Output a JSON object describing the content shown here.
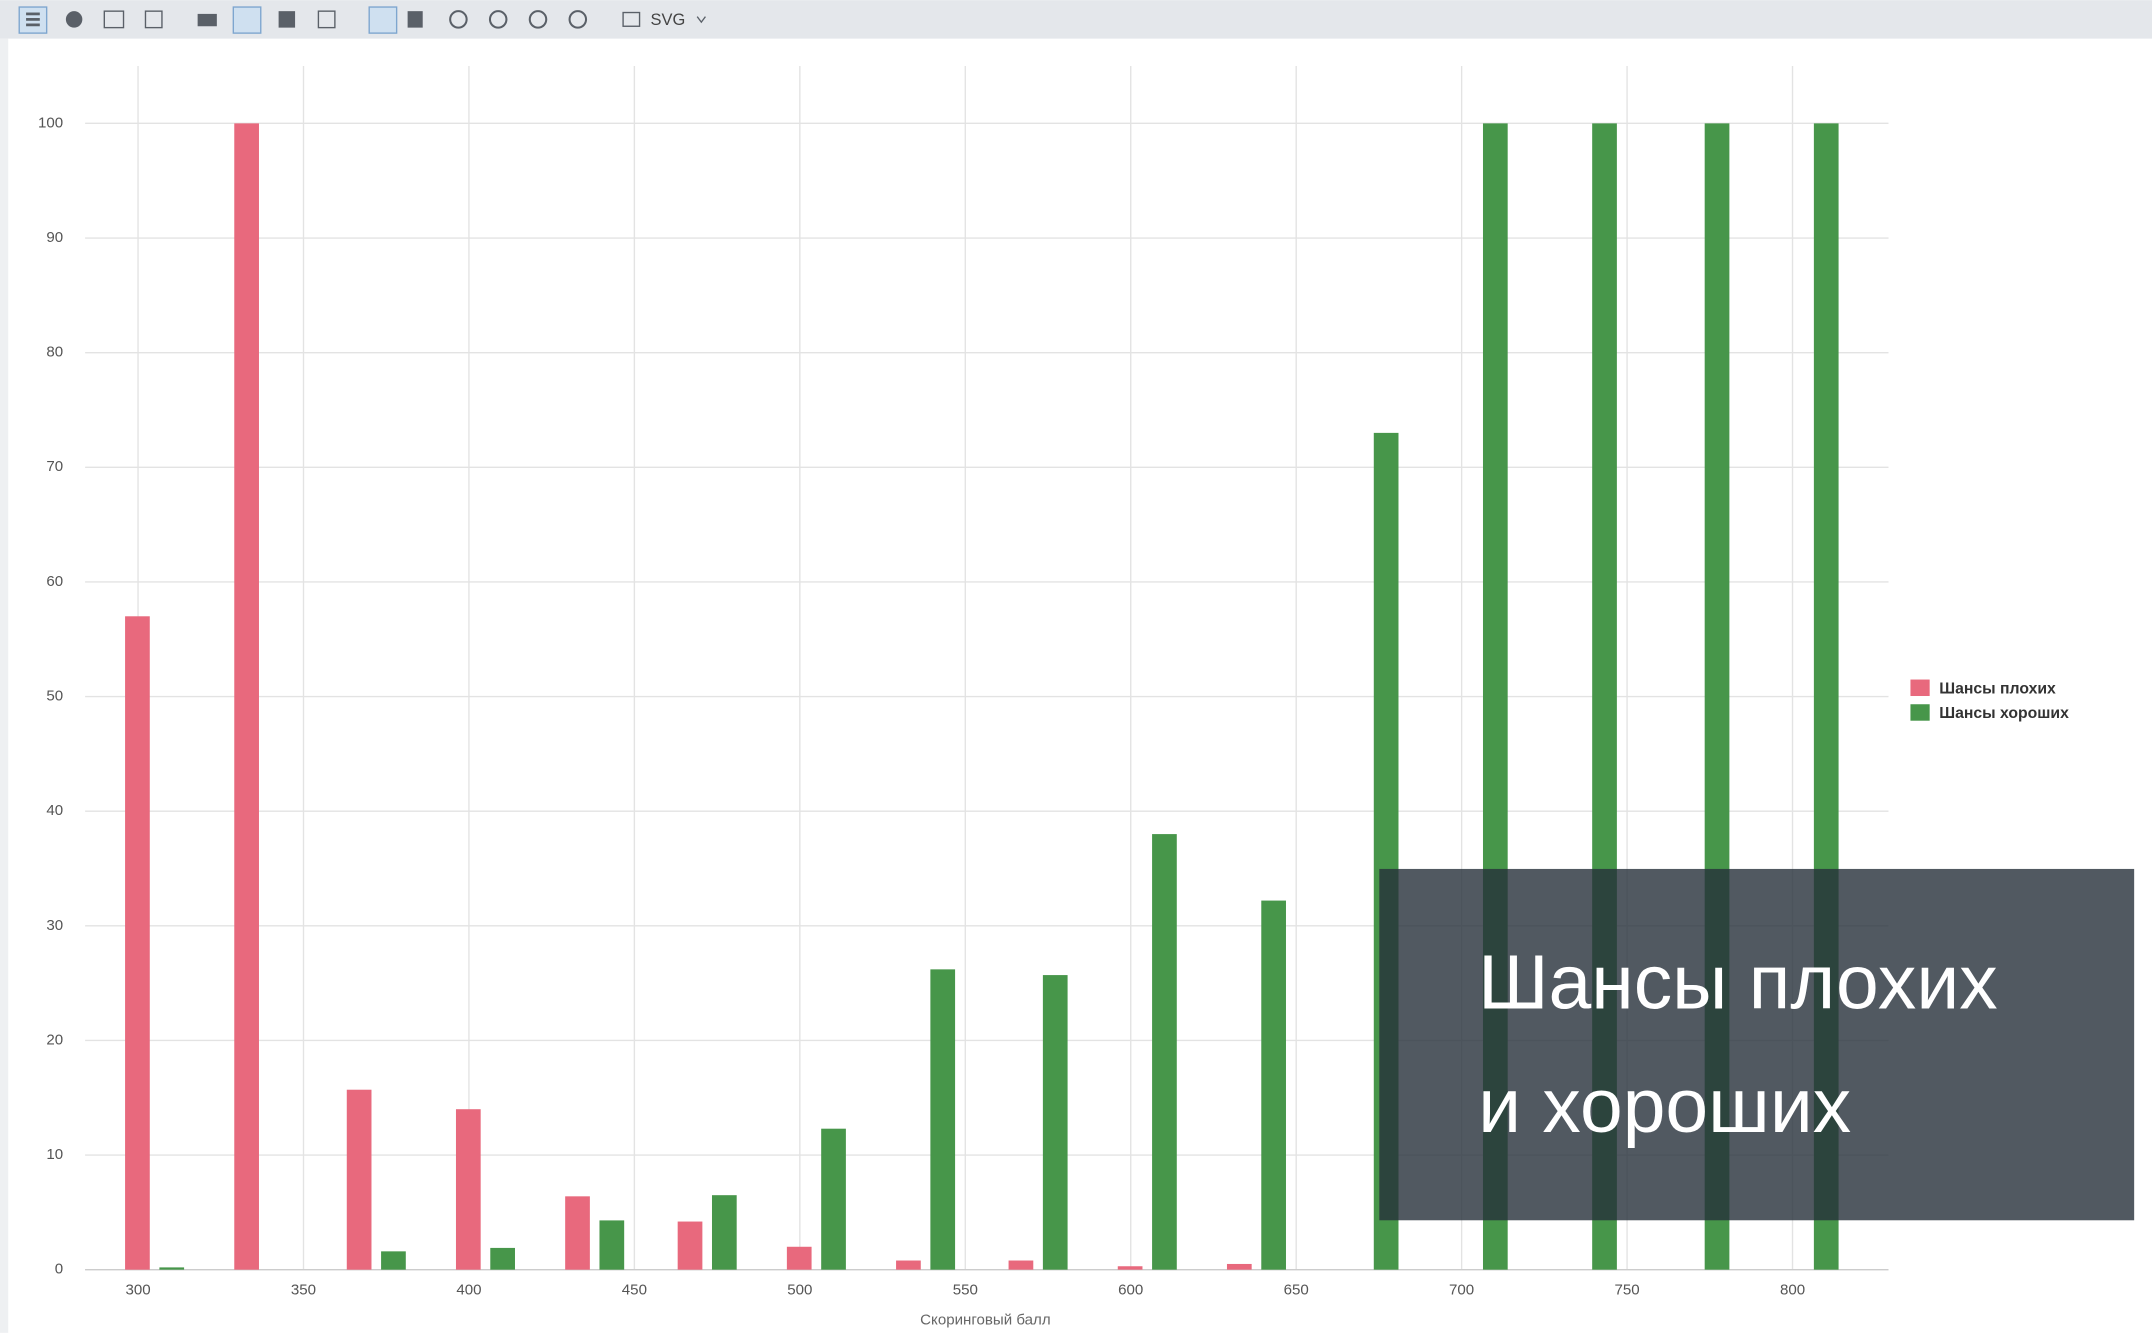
{
  "toolbar": {
    "export_label": "SVG"
  },
  "chart_data": {
    "type": "bar",
    "x": [
      305,
      338,
      372,
      405,
      438,
      472,
      505,
      538,
      572,
      605,
      638,
      672,
      705,
      738,
      772,
      805
    ],
    "series": [
      {
        "name": "Шансы плохих",
        "color": "#e8697d",
        "values": [
          57,
          100,
          15.7,
          14,
          6.4,
          4.2,
          2,
          0.8,
          0.8,
          0.3,
          0.5,
          0,
          0,
          0,
          0,
          0
        ]
      },
      {
        "name": "Шансы хороших",
        "color": "#47964a",
        "values": [
          0.2,
          0,
          1.6,
          1.9,
          4.3,
          6.5,
          12.3,
          26.2,
          25.7,
          38,
          32.2,
          73,
          100,
          100,
          100,
          100
        ]
      }
    ],
    "xlabel": "Скоринговый балл",
    "xlim": [
      284,
      829
    ],
    "xticks": [
      300,
      350,
      400,
      450,
      500,
      550,
      600,
      650,
      700,
      750,
      800
    ],
    "ylim": [
      0,
      105
    ],
    "yticks": [
      0,
      10,
      20,
      30,
      40,
      50,
      60,
      70,
      80,
      90,
      100
    ],
    "grid": true,
    "legend": "right",
    "overlay_title": [
      "Шансы плохих",
      "и хороших"
    ]
  }
}
